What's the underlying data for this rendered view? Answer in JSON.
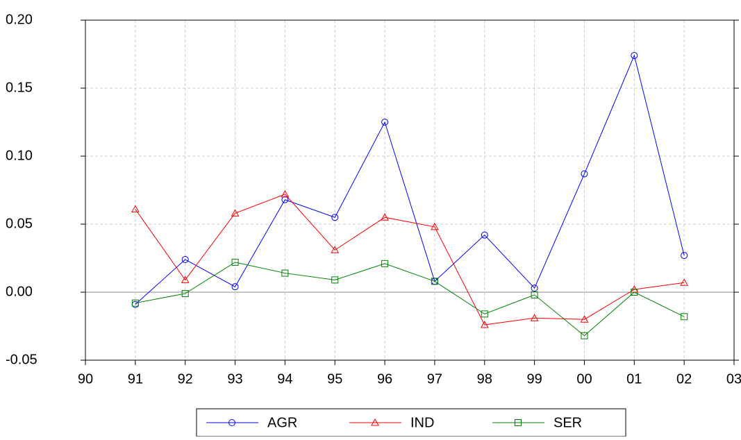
{
  "chart_data": {
    "type": "line",
    "categories": [
      "90",
      "91",
      "92",
      "93",
      "94",
      "95",
      "96",
      "97",
      "98",
      "99",
      "00",
      "01",
      "02",
      "03"
    ],
    "series": [
      {
        "name": "AGR",
        "color": "#0000ff",
        "marker": "circle",
        "values": [
          null,
          -0.009,
          0.024,
          0.004,
          0.068,
          0.055,
          0.125,
          0.008,
          0.042,
          0.003,
          0.087,
          0.174,
          0.027,
          null
        ]
      },
      {
        "name": "IND",
        "color": "#ff0000",
        "marker": "triangle",
        "values": [
          null,
          0.061,
          0.009,
          0.058,
          0.072,
          0.031,
          0.055,
          0.048,
          -0.024,
          -0.019,
          -0.02,
          0.002,
          0.007,
          null
        ]
      },
      {
        "name": "SER",
        "color": "#008000",
        "marker": "square",
        "values": [
          null,
          -0.008,
          -0.001,
          0.022,
          0.014,
          0.009,
          0.021,
          0.008,
          -0.016,
          -0.002,
          -0.032,
          0.0,
          -0.018,
          null
        ]
      }
    ],
    "ylim": [
      -0.05,
      0.2
    ],
    "yticks": [
      -0.05,
      {
        "value": 0.0,
        "label": "0.00"
      },
      0.05,
      {
        "value": 0.1,
        "label": "0.10"
      },
      0.15,
      {
        "value": 0.2,
        "label": "0.20"
      }
    ],
    "grid": true,
    "legend": "bottom"
  }
}
